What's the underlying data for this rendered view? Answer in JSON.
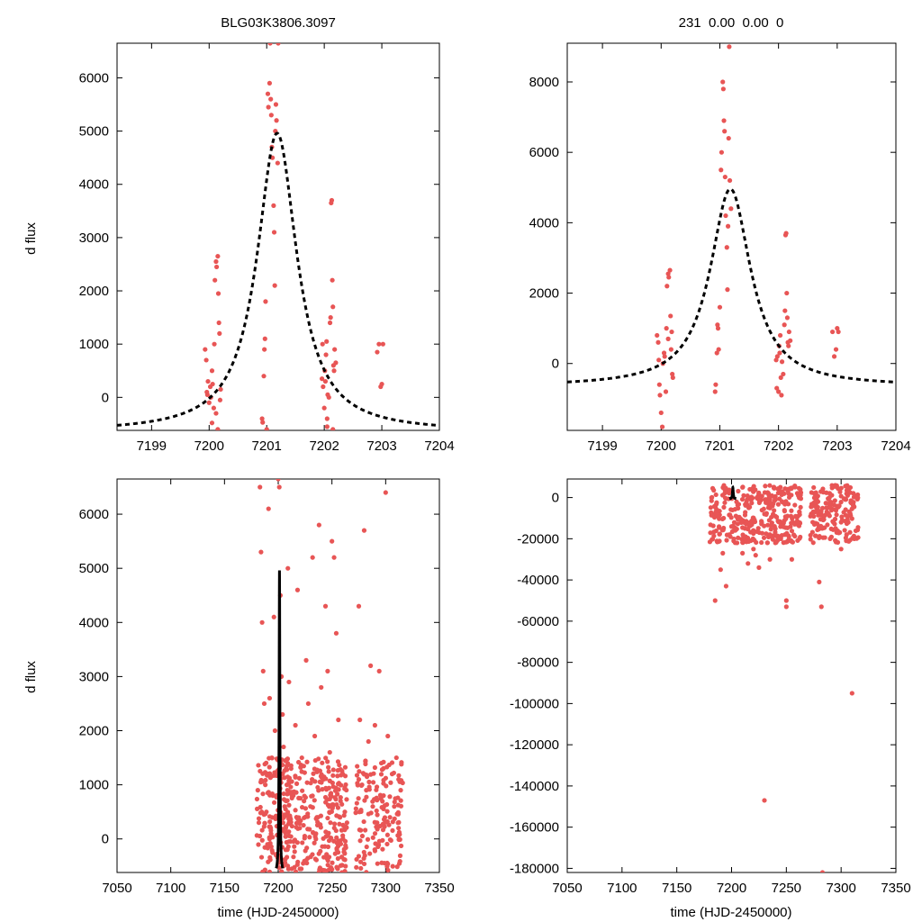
{
  "figure": {
    "titles": {
      "left": "BLG03K3806.3097",
      "right": "231  0.00  0.00  0"
    },
    "ylabel": "d flux",
    "xlabel": "time (HJD-2450000)"
  },
  "colors": {
    "points": "#e85555",
    "model": "#000000",
    "axes": "#000000"
  },
  "chart_data": [
    {
      "type": "scatter",
      "panel": "top-left",
      "xlim": [
        7198.4,
        7204.0
      ],
      "ylim": [
        -620,
        6650
      ],
      "xticks": [
        7199,
        7200,
        7201,
        7202,
        7203,
        7204
      ],
      "yticks": [
        0,
        1000,
        2000,
        3000,
        4000,
        5000,
        6000
      ],
      "model_curve": {
        "style": "dashed",
        "t0": 7201.18,
        "peak": 4960,
        "baseline": -650,
        "width": 0.42
      },
      "points": [
        [
          7199.93,
          900
        ],
        [
          7199.95,
          700
        ],
        [
          7199.96,
          100
        ],
        [
          7199.97,
          50
        ],
        [
          7199.98,
          300
        ],
        [
          7200.0,
          -100
        ],
        [
          7200.02,
          200
        ],
        [
          7200.03,
          0
        ],
        [
          7200.05,
          500
        ],
        [
          7200.06,
          250
        ],
        [
          7200.08,
          -200
        ],
        [
          7200.09,
          1000
        ],
        [
          7200.1,
          2200
        ],
        [
          7200.12,
          2550
        ],
        [
          7200.13,
          2450
        ],
        [
          7200.15,
          2650
        ],
        [
          7200.16,
          1950
        ],
        [
          7200.17,
          1400
        ],
        [
          7200.18,
          1200
        ],
        [
          7200.19,
          -50
        ],
        [
          7200.2,
          150
        ],
        [
          7200.05,
          -480
        ],
        [
          7200.12,
          -300
        ],
        [
          7200.15,
          -600
        ],
        [
          7200.92,
          -400
        ],
        [
          7200.93,
          -470
        ],
        [
          7200.95,
          400
        ],
        [
          7200.96,
          900
        ],
        [
          7200.97,
          1100
        ],
        [
          7200.98,
          1800
        ],
        [
          7201.0,
          -600
        ],
        [
          7201.02,
          5700
        ],
        [
          7201.03,
          5450
        ],
        [
          7201.05,
          5900
        ],
        [
          7201.06,
          6650
        ],
        [
          7201.07,
          5600
        ],
        [
          7201.08,
          5300
        ],
        [
          7201.09,
          4700
        ],
        [
          7201.1,
          4500
        ],
        [
          7201.12,
          3600
        ],
        [
          7201.13,
          3100
        ],
        [
          7201.14,
          2100
        ],
        [
          7201.15,
          5000
        ],
        [
          7201.16,
          5500
        ],
        [
          7201.17,
          5200
        ],
        [
          7201.19,
          4400
        ],
        [
          7201.2,
          6650
        ],
        [
          7201.96,
          350
        ],
        [
          7201.97,
          1000
        ],
        [
          7201.98,
          200
        ],
        [
          7202.0,
          -200
        ],
        [
          7202.01,
          500
        ],
        [
          7202.02,
          300
        ],
        [
          7202.03,
          800
        ],
        [
          7202.04,
          1050
        ],
        [
          7202.05,
          -400
        ],
        [
          7202.06,
          50
        ],
        [
          7202.08,
          0
        ],
        [
          7202.1,
          1400
        ],
        [
          7202.11,
          1500
        ],
        [
          7202.12,
          3650
        ],
        [
          7202.13,
          3700
        ],
        [
          7202.14,
          2200
        ],
        [
          7202.15,
          1700
        ],
        [
          7202.16,
          600
        ],
        [
          7202.17,
          500
        ],
        [
          7202.18,
          900
        ],
        [
          7202.2,
          650
        ],
        [
          7202.05,
          -550
        ],
        [
          7202.15,
          -600
        ],
        [
          7202.92,
          850
        ],
        [
          7202.95,
          1000
        ],
        [
          7202.98,
          200
        ],
        [
          7203.0,
          250
        ],
        [
          7203.02,
          1000
        ]
      ]
    },
    {
      "type": "scatter",
      "panel": "top-right",
      "xlim": [
        7198.4,
        7204.0
      ],
      "ylim": [
        -1900,
        9100
      ],
      "xticks": [
        7199,
        7200,
        7201,
        7202,
        7203,
        7204
      ],
      "yticks": [
        0,
        2000,
        4000,
        6000,
        8000
      ],
      "model_curve": {
        "style": "dashed",
        "t0": 7201.18,
        "peak": 4960,
        "baseline": -650,
        "width": 0.42
      },
      "points": [
        [
          7199.93,
          800
        ],
        [
          7199.95,
          600
        ],
        [
          7199.96,
          100
        ],
        [
          7199.97,
          -600
        ],
        [
          7199.98,
          -900
        ],
        [
          7200.0,
          -1400
        ],
        [
          7200.02,
          -1800
        ],
        [
          7200.03,
          0
        ],
        [
          7200.05,
          300
        ],
        [
          7200.06,
          200
        ],
        [
          7200.08,
          -800
        ],
        [
          7200.09,
          1000
        ],
        [
          7200.1,
          2200
        ],
        [
          7200.12,
          2550
        ],
        [
          7200.13,
          2450
        ],
        [
          7200.15,
          2650
        ],
        [
          7200.16,
          1350
        ],
        [
          7200.17,
          400
        ],
        [
          7200.18,
          900
        ],
        [
          7200.19,
          -300
        ],
        [
          7200.2,
          -400
        ],
        [
          7200.12,
          700
        ],
        [
          7200.92,
          -800
        ],
        [
          7200.93,
          -600
        ],
        [
          7200.95,
          300
        ],
        [
          7200.96,
          1100
        ],
        [
          7200.97,
          1000
        ],
        [
          7200.98,
          400
        ],
        [
          7201.0,
          1600
        ],
        [
          7201.02,
          5500
        ],
        [
          7201.03,
          6000
        ],
        [
          7201.05,
          8000
        ],
        [
          7201.06,
          7800
        ],
        [
          7201.07,
          6900
        ],
        [
          7201.08,
          6600
        ],
        [
          7201.09,
          5300
        ],
        [
          7201.1,
          4200
        ],
        [
          7201.12,
          3300
        ],
        [
          7201.13,
          2100
        ],
        [
          7201.14,
          3900
        ],
        [
          7201.15,
          6400
        ],
        [
          7201.16,
          9000
        ],
        [
          7201.17,
          5200
        ],
        [
          7201.19,
          4400
        ],
        [
          7201.96,
          100
        ],
        [
          7201.97,
          -700
        ],
        [
          7201.98,
          200
        ],
        [
          7202.0,
          -800
        ],
        [
          7202.01,
          500
        ],
        [
          7202.02,
          300
        ],
        [
          7202.03,
          800
        ],
        [
          7202.04,
          -400
        ],
        [
          7202.05,
          -900
        ],
        [
          7202.06,
          50
        ],
        [
          7202.08,
          -300
        ],
        [
          7202.1,
          1100
        ],
        [
          7202.11,
          1500
        ],
        [
          7202.12,
          3650
        ],
        [
          7202.13,
          3700
        ],
        [
          7202.14,
          2000
        ],
        [
          7202.15,
          1300
        ],
        [
          7202.16,
          600
        ],
        [
          7202.17,
          500
        ],
        [
          7202.18,
          900
        ],
        [
          7202.2,
          650
        ],
        [
          7202.92,
          900
        ],
        [
          7202.95,
          200
        ],
        [
          7202.98,
          400
        ],
        [
          7203.0,
          1000
        ],
        [
          7203.02,
          900
        ]
      ]
    },
    {
      "type": "scatter",
      "panel": "bottom-left",
      "xlim": [
        7050,
        7350
      ],
      "ylim": [
        -620,
        6650
      ],
      "xticks": [
        7050,
        7100,
        7150,
        7200,
        7250,
        7300,
        7350
      ],
      "yticks": [
        0,
        1000,
        2000,
        3000,
        4000,
        5000,
        6000
      ],
      "model_curve": {
        "style": "solid",
        "t0": 7201.18,
        "peak": 4960,
        "baseline": -650,
        "width": 0.42
      },
      "points": [
        [
          7181,
          900
        ],
        [
          7182,
          300
        ],
        [
          7183,
          6500
        ],
        [
          7184,
          5300
        ],
        [
          7185,
          4000
        ],
        [
          7186,
          3100
        ],
        [
          7187,
          2500
        ],
        [
          7188,
          1000
        ],
        [
          7189,
          500
        ],
        [
          7190,
          -100
        ],
        [
          7191,
          6100
        ],
        [
          7192,
          2600
        ],
        [
          7193,
          200
        ],
        [
          7194,
          1500
        ],
        [
          7195,
          800
        ],
        [
          7196,
          4100
        ],
        [
          7197,
          2000
        ],
        [
          7198,
          -300
        ],
        [
          7199,
          1200
        ],
        [
          7200,
          6650
        ],
        [
          7201,
          6500
        ],
        [
          7202,
          4500
        ],
        [
          7203,
          3000
        ],
        [
          7204,
          2300
        ],
        [
          7205,
          1700
        ],
        [
          7206,
          600
        ],
        [
          7207,
          -200
        ],
        [
          7208,
          1000
        ],
        [
          7209,
          5000
        ],
        [
          7210,
          2900
        ],
        [
          7211,
          400
        ],
        [
          7212,
          1300
        ],
        [
          7214,
          800
        ],
        [
          7216,
          2100
        ],
        [
          7218,
          4600
        ],
        [
          7220,
          200
        ],
        [
          7222,
          1500
        ],
        [
          7224,
          700
        ],
        [
          7226,
          3300
        ],
        [
          7228,
          2500
        ],
        [
          7230,
          600
        ],
        [
          7232,
          5200
        ],
        [
          7234,
          1900
        ],
        [
          7236,
          400
        ],
        [
          7238,
          5800
        ],
        [
          7240,
          2800
        ],
        [
          7242,
          1100
        ],
        [
          7244,
          4300
        ],
        [
          7246,
          3100
        ],
        [
          7248,
          1600
        ],
        [
          7250,
          5500
        ],
        [
          7252,
          5200
        ],
        [
          7254,
          3800
        ],
        [
          7256,
          2200
        ],
        [
          7258,
          700
        ],
        [
          7260,
          1200
        ],
        [
          7262,
          500
        ],
        [
          7264,
          300
        ],
        [
          7275,
          4300
        ],
        [
          7276,
          2200
        ],
        [
          7278,
          1000
        ],
        [
          7280,
          5700
        ],
        [
          7282,
          900
        ],
        [
          7284,
          1800
        ],
        [
          7286,
          3200
        ],
        [
          7288,
          600
        ],
        [
          7290,
          2100
        ],
        [
          7292,
          300
        ],
        [
          7294,
          3100
        ],
        [
          7296,
          1400
        ],
        [
          7298,
          800
        ],
        [
          7300,
          6400
        ],
        [
          7302,
          1900
        ],
        [
          7304,
          400
        ],
        [
          7306,
          1200
        ],
        [
          7308,
          600
        ],
        [
          7310,
          1500
        ],
        [
          7312,
          200
        ],
        [
          7314,
          900
        ]
      ],
      "dense_bands": [
        {
          "from": 7180,
          "to": 7198,
          "count": 70
        },
        {
          "from": 7198,
          "to": 7213,
          "count": 110
        },
        {
          "from": 7214,
          "to": 7228,
          "count": 60
        },
        {
          "from": 7229,
          "to": 7246,
          "count": 70
        },
        {
          "from": 7246,
          "to": 7264,
          "count": 110
        },
        {
          "from": 7272,
          "to": 7316,
          "count": 150
        }
      ],
      "band_ylim": [
        -620,
        1500
      ]
    },
    {
      "type": "scatter",
      "panel": "bottom-right",
      "xlim": [
        7050,
        7350
      ],
      "ylim": [
        -182000,
        9000
      ],
      "xticks": [
        7050,
        7100,
        7150,
        7200,
        7250,
        7300,
        7350
      ],
      "yticks": [
        0,
        -20000,
        -40000,
        -60000,
        -80000,
        -100000,
        -120000,
        -140000,
        -160000,
        -180000
      ],
      "model_curve": {
        "style": "solid",
        "t0": 7201.18,
        "peak": 4960,
        "baseline": -650,
        "width": 0.42
      },
      "points": [
        [
          7185,
          -50000
        ],
        [
          7192,
          -27000
        ],
        [
          7195,
          -43000
        ],
        [
          7198,
          -18000
        ],
        [
          7205,
          -22000
        ],
        [
          7210,
          -27000
        ],
        [
          7215,
          -32000
        ],
        [
          7220,
          -25000
        ],
        [
          7225,
          -34000
        ],
        [
          7230,
          -147000
        ],
        [
          7235,
          -30000
        ],
        [
          7240,
          -22000
        ],
        [
          7245,
          -20000
        ],
        [
          7250,
          -50000
        ],
        [
          7250,
          -53000
        ],
        [
          7255,
          -30000
        ],
        [
          7260,
          -12000
        ],
        [
          7280,
          -41000
        ],
        [
          7282,
          -53000
        ],
        [
          7283,
          -182000
        ],
        [
          7290,
          -20000
        ],
        [
          7300,
          -25000
        ],
        [
          7305,
          -18000
        ],
        [
          7310,
          -95000
        ],
        [
          7312,
          -20000
        ],
        [
          7288,
          -8000
        ],
        [
          7295,
          -15000
        ],
        [
          7300,
          -12000
        ],
        [
          7190,
          -35000
        ],
        [
          7222,
          -28000
        ]
      ],
      "dense_bands": [
        {
          "from": 7180,
          "to": 7228,
          "count": 180
        },
        {
          "from": 7229,
          "to": 7264,
          "count": 160
        },
        {
          "from": 7272,
          "to": 7316,
          "count": 170
        }
      ],
      "band_ylim": [
        -22000,
        6000
      ]
    }
  ]
}
